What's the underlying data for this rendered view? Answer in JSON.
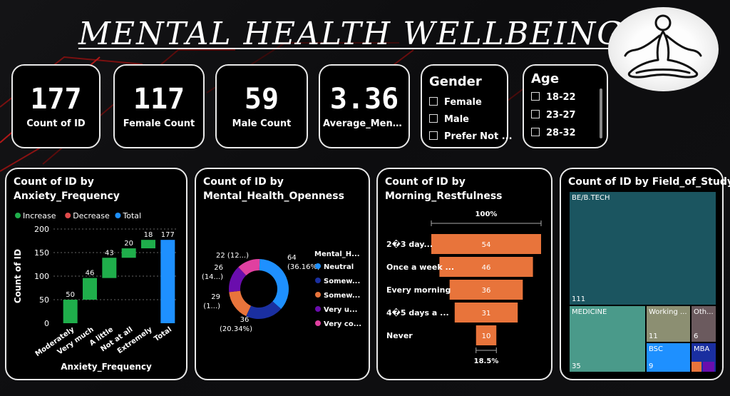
{
  "title": "MENTAL HEALTH WELLBEING",
  "kpis": [
    {
      "value": "177",
      "label": "Count of ID"
    },
    {
      "value": "117",
      "label": "Female Count"
    },
    {
      "value": "59",
      "label": "Male Count"
    },
    {
      "value": "3.36",
      "label": "Average_Mental_..."
    }
  ],
  "gender": {
    "title": "Gender",
    "options": [
      "Female",
      "Male",
      "Prefer Not ..."
    ]
  },
  "age": {
    "title": "Age",
    "options": [
      "18-22",
      "23-27",
      "28-32"
    ]
  },
  "charts": {
    "waterfall": {
      "title": "Count of ID by Anxiety_Frequency",
      "legend": [
        "Increase",
        "Decrease",
        "Total"
      ],
      "ylabel": "Count of ID",
      "xlabel": "Anxiety_Frequency",
      "yticks": [
        "0",
        "50",
        "100",
        "150",
        "200"
      ]
    },
    "donut": {
      "title": "Count of ID by Mental_Health_Openness",
      "legend_title": "Mental_H...",
      "legend": [
        "Neutral",
        "Somew...",
        "Somew...",
        "Very u...",
        "Very co..."
      ],
      "labels": {
        "neutral": "64",
        "neutral_pct": "(36.16%)",
        "s36": "36",
        "s36_pct": "(20.34%)",
        "s29": "29",
        "s29_pct": "(1...)",
        "s26": "26",
        "s26_pct": "(14...)",
        "s22": "22 (12...)"
      }
    },
    "funnel": {
      "title": "Count of ID by Morning_Restfulness",
      "top_pct": "100%",
      "bottom_pct": "18.5%"
    },
    "treemap": {
      "title": "Count of ID by Field_of_Study"
    }
  },
  "chart_data": [
    {
      "type": "bar",
      "subtype": "waterfall",
      "title": "Count of ID by Anxiety_Frequency",
      "categories": [
        "Moderately",
        "Very much",
        "A little",
        "Not at all",
        "Extremely",
        "Total"
      ],
      "values": [
        50,
        46,
        43,
        20,
        18,
        177
      ],
      "kinds": [
        "increase",
        "increase",
        "increase",
        "increase",
        "increase",
        "total"
      ],
      "ylim": [
        0,
        200
      ],
      "xlabel": "Anxiety_Frequency",
      "ylabel": "Count of ID",
      "colors": {
        "increase": "#1fae4b",
        "decrease": "#e04b4b",
        "total": "#1e90ff"
      }
    },
    {
      "type": "pie",
      "subtype": "donut",
      "title": "Count of ID by Mental_Health_Openness",
      "categories": [
        "Neutral",
        "Somew...",
        "Somew...",
        "Very u...",
        "Very co..."
      ],
      "values": [
        64,
        36,
        29,
        26,
        22
      ],
      "colors": [
        "#1e90ff",
        "#1a2fa0",
        "#e8743b",
        "#6a0dad",
        "#e040a0"
      ]
    },
    {
      "type": "bar",
      "subtype": "funnel",
      "title": "Count of ID by Morning_Restfulness",
      "categories": [
        "2�3 day...",
        "Once a week ...",
        "Every morning",
        "4�5 days a ...",
        "Never"
      ],
      "values": [
        54,
        46,
        36,
        31,
        10
      ],
      "color": "#e8743b"
    },
    {
      "type": "heatmap",
      "subtype": "treemap",
      "title": "Count of ID by Field_of_Study",
      "categories": [
        "BE/B.TECH",
        "MEDICINE",
        "Working ...",
        "Oth...",
        "BSC",
        "MBA"
      ],
      "values": [
        111,
        35,
        11,
        6,
        9,
        null
      ],
      "colors": [
        "#1b5560",
        "#4a9a8a",
        "#8c8f72",
        "#6b5a5e",
        "#1e90ff",
        "#1a2fa0"
      ]
    }
  ]
}
